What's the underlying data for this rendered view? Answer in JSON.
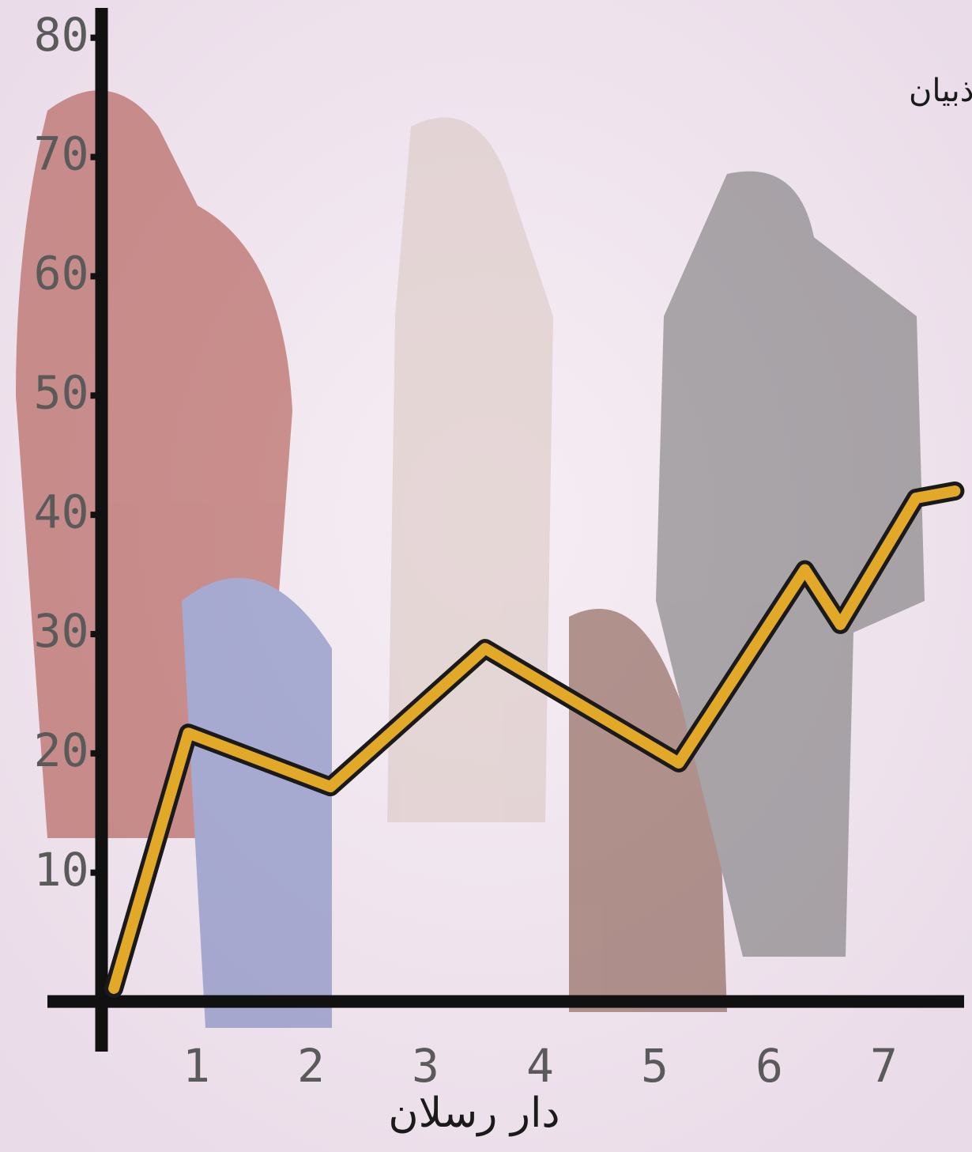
{
  "chart_data": {
    "type": "line",
    "author": "تأليف: ندا ذبيان",
    "publisher": "دار رسلان",
    "x": [
      0.28,
      0.93,
      2.17,
      3.52,
      5.21,
      6.31,
      6.62,
      7.28,
      7.62
    ],
    "values": [
      0.3,
      21.7,
      17.2,
      28.8,
      19.2,
      35.4,
      30.8,
      41.4,
      42
    ],
    "color": "#e2a928",
    "xlim": [
      -0.3,
      7.7
    ],
    "ylim": [
      -5,
      82.5
    ],
    "xticks": [
      1,
      2,
      3,
      4,
      5,
      6,
      7
    ],
    "yticks": [
      10,
      20,
      30,
      40,
      50,
      60,
      70,
      80
    ]
  }
}
